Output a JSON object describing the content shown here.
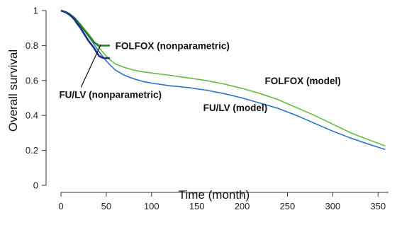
{
  "chart_data": {
    "type": "line",
    "title": "",
    "xlabel": "Time (month)",
    "ylabel": "Overall survival",
    "xlim": [
      0,
      360
    ],
    "ylim": [
      0,
      1
    ],
    "xticks": [
      "0",
      "50",
      "100",
      "150",
      "200",
      "250",
      "300",
      "350"
    ],
    "yticks": [
      "0",
      "0.2",
      "0.4",
      "0.6",
      "0.8",
      "1"
    ],
    "grid": false,
    "series": [
      {
        "name": "FOLFOX (model)",
        "color": "#66bb44",
        "x": [
          0,
          5,
          10,
          15,
          20,
          25,
          30,
          35,
          40,
          45,
          50,
          55,
          60,
          70,
          80,
          90,
          100,
          120,
          140,
          160,
          180,
          200,
          220,
          240,
          260,
          280,
          300,
          320,
          340,
          358
        ],
        "y": [
          1.0,
          0.99,
          0.975,
          0.955,
          0.93,
          0.9,
          0.87,
          0.835,
          0.8,
          0.77,
          0.74,
          0.715,
          0.695,
          0.675,
          0.66,
          0.65,
          0.643,
          0.63,
          0.615,
          0.6,
          0.58,
          0.555,
          0.525,
          0.49,
          0.445,
          0.4,
          0.35,
          0.3,
          0.26,
          0.225
        ]
      },
      {
        "name": "FU/LV (model)",
        "color": "#2a72c6",
        "x": [
          0,
          5,
          10,
          15,
          20,
          25,
          30,
          35,
          40,
          45,
          50,
          55,
          60,
          70,
          80,
          90,
          100,
          120,
          140,
          160,
          180,
          200,
          220,
          240,
          260,
          280,
          300,
          320,
          340,
          358
        ],
        "y": [
          1.0,
          0.99,
          0.972,
          0.95,
          0.92,
          0.89,
          0.855,
          0.82,
          0.78,
          0.745,
          0.712,
          0.685,
          0.66,
          0.63,
          0.61,
          0.595,
          0.585,
          0.57,
          0.56,
          0.545,
          0.525,
          0.5,
          0.47,
          0.44,
          0.4,
          0.355,
          0.31,
          0.27,
          0.235,
          0.205
        ]
      },
      {
        "name": "FOLFOX (nonparametric)",
        "color": "#2e7d32",
        "x": [
          0,
          3,
          6,
          9,
          12,
          15,
          18,
          21,
          24,
          27,
          30,
          33,
          36,
          39,
          42,
          44,
          46,
          48,
          50,
          52,
          54
        ],
        "y": [
          1.0,
          0.995,
          0.99,
          0.982,
          0.97,
          0.958,
          0.94,
          0.922,
          0.9,
          0.88,
          0.86,
          0.84,
          0.82,
          0.81,
          0.8,
          0.8,
          0.8,
          0.8,
          0.8,
          0.8,
          0.8
        ]
      },
      {
        "name": "FU/LV (nonparametric)",
        "color": "#1a2f8a",
        "x": [
          0,
          3,
          6,
          9,
          12,
          15,
          18,
          21,
          24,
          27,
          30,
          33,
          36,
          39,
          42,
          44,
          46,
          48,
          50,
          52,
          54
        ],
        "y": [
          1.0,
          0.995,
          0.988,
          0.978,
          0.965,
          0.948,
          0.925,
          0.905,
          0.88,
          0.855,
          0.83,
          0.81,
          0.79,
          0.765,
          0.74,
          0.735,
          0.73,
          0.728,
          0.728,
          0.728,
          0.728
        ]
      }
    ],
    "annotations": [
      {
        "text": "FOLFOX (nonparametric)",
        "x": 60,
        "y": 0.8
      },
      {
        "text": "FU/LV (nonparametric)",
        "x": -2,
        "y": 0.52
      },
      {
        "text": "FOLFOX (model)",
        "x": 225,
        "y": 0.6
      },
      {
        "text": "FU/LV (model)",
        "x": 157,
        "y": 0.445
      }
    ],
    "pointer_line": {
      "from": [
        22,
        0.56
      ],
      "to": [
        44,
        0.805
      ]
    }
  }
}
